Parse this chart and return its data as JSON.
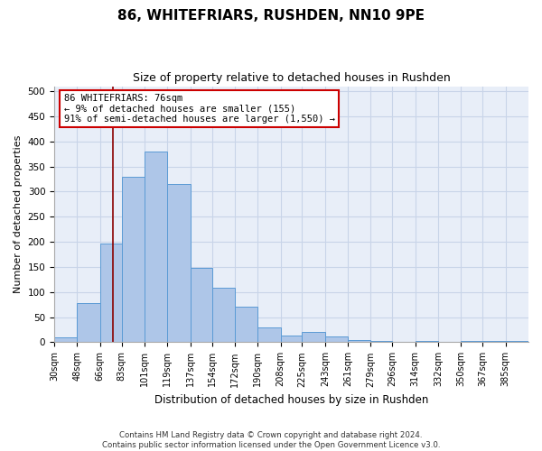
{
  "title1": "86, WHITEFRIARS, RUSHDEN, NN10 9PE",
  "title2": "Size of property relative to detached houses in Rushden",
  "xlabel": "Distribution of detached houses by size in Rushden",
  "ylabel": "Number of detached properties",
  "bin_labels": [
    "30sqm",
    "48sqm",
    "66sqm",
    "83sqm",
    "101sqm",
    "119sqm",
    "137sqm",
    "154sqm",
    "172sqm",
    "190sqm",
    "208sqm",
    "225sqm",
    "243sqm",
    "261sqm",
    "279sqm",
    "296sqm",
    "314sqm",
    "332sqm",
    "350sqm",
    "367sqm",
    "385sqm"
  ],
  "bin_edges": [
    30,
    48,
    66,
    83,
    101,
    119,
    137,
    154,
    172,
    190,
    208,
    225,
    243,
    261,
    279,
    296,
    314,
    332,
    350,
    367,
    385
  ],
  "bar_heights": [
    10,
    78,
    197,
    330,
    380,
    315,
    148,
    108,
    70,
    30,
    13,
    20,
    12,
    5,
    3,
    0,
    3,
    0,
    3,
    3,
    3
  ],
  "bar_color": "#aec6e8",
  "bar_edge_color": "#5b9bd5",
  "vline_x": 76,
  "vline_color": "#8b0000",
  "annotation_line1": "86 WHITEFRIARS: 76sqm",
  "annotation_line2": "← 9% of detached houses are smaller (155)",
  "annotation_line3": "91% of semi-detached houses are larger (1,550) →",
  "annotation_box_color": "#cc0000",
  "ylim": [
    0,
    510
  ],
  "yticks": [
    0,
    50,
    100,
    150,
    200,
    250,
    300,
    350,
    400,
    450,
    500
  ],
  "footer1": "Contains HM Land Registry data © Crown copyright and database right 2024.",
  "footer2": "Contains public sector information licensed under the Open Government Licence v3.0.",
  "grid_color": "#c8d4e8",
  "bg_color": "#e8eef8"
}
